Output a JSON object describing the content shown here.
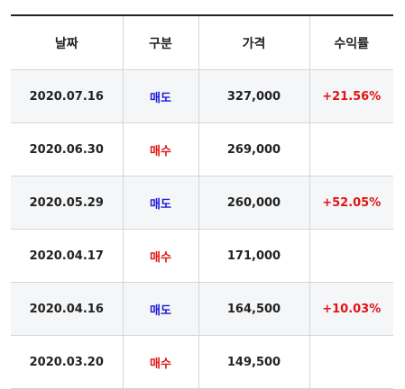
{
  "table": {
    "headers": [
      "날짜",
      "구분",
      "가격",
      "수익률"
    ],
    "rows": [
      {
        "date": "2020.07.16",
        "type": "매도",
        "type_kind": "sell",
        "price": "327,000",
        "rate": "+21.56%"
      },
      {
        "date": "2020.06.30",
        "type": "매수",
        "type_kind": "buy",
        "price": "269,000",
        "rate": ""
      },
      {
        "date": "2020.05.29",
        "type": "매도",
        "type_kind": "sell",
        "price": "260,000",
        "rate": "+52.05%"
      },
      {
        "date": "2020.04.17",
        "type": "매수",
        "type_kind": "buy",
        "price": "171,000",
        "rate": ""
      },
      {
        "date": "2020.04.16",
        "type": "매도",
        "type_kind": "sell",
        "price": "164,500",
        "rate": "+10.03%"
      },
      {
        "date": "2020.03.20",
        "type": "매수",
        "type_kind": "buy",
        "price": "149,500",
        "rate": ""
      }
    ]
  },
  "colors": {
    "sell": "#1a1ad6",
    "buy": "#e01414",
    "positive_rate": "#e01414",
    "row_shade": "#f5f6f8",
    "header_rule": "#222222"
  }
}
